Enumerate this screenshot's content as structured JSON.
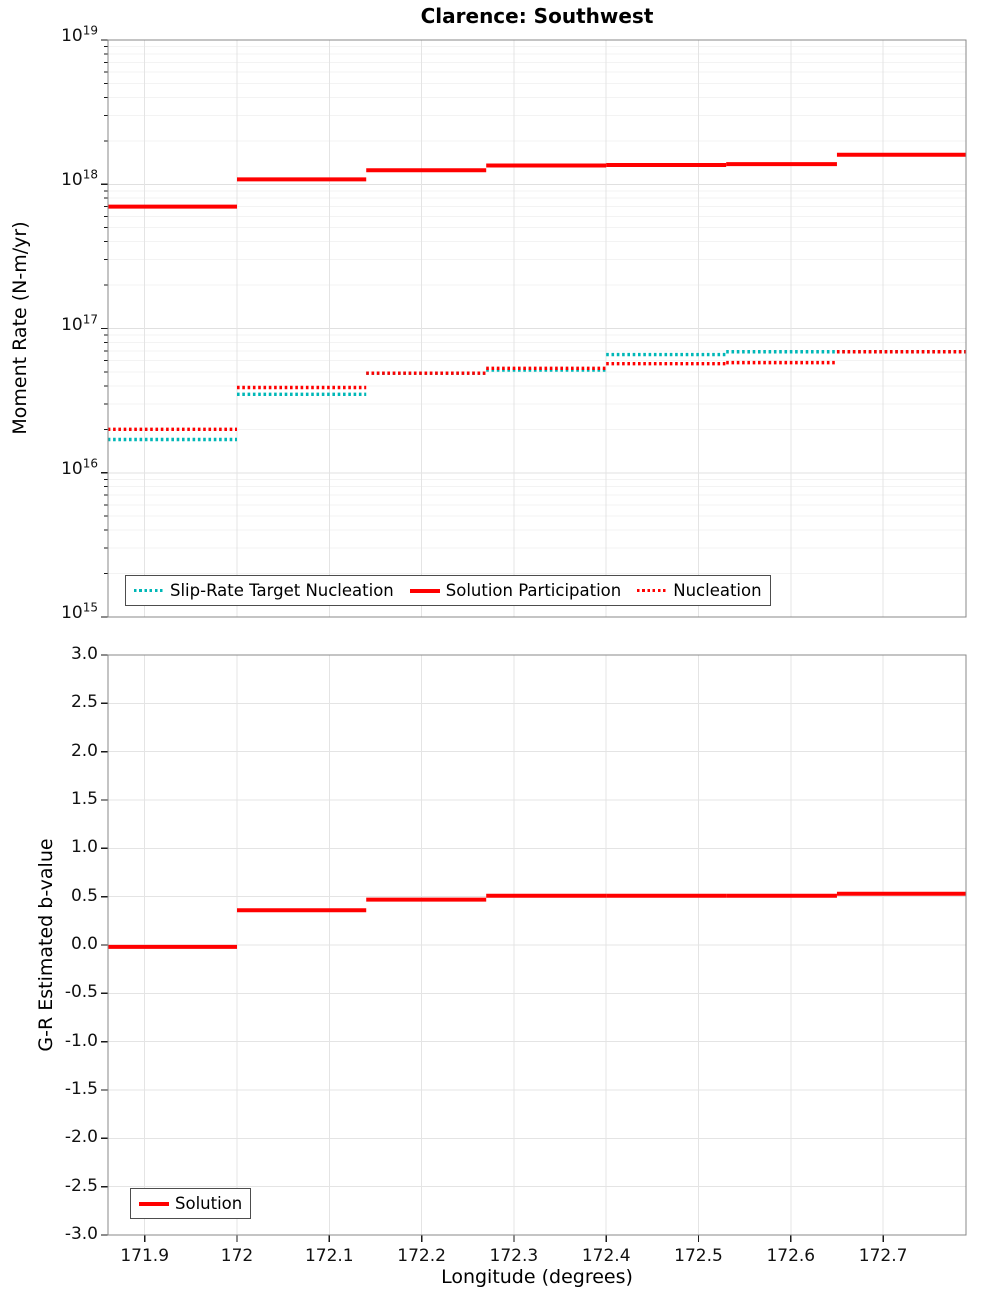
{
  "title": "Clarence: Southwest",
  "x_axis": {
    "label": "Longitude (degrees)",
    "tick_labels": [
      "171.9",
      "172",
      "172.1",
      "172.2",
      "172.3",
      "172.4",
      "172.5",
      "172.6",
      "172.7"
    ],
    "range": [
      171.86,
      172.79
    ]
  },
  "top_panel": {
    "y_label": "Moment Rate (N-m/yr)",
    "y_tick_base": "10",
    "y_tick_exponents": [
      19,
      18,
      17,
      16,
      15
    ],
    "legend": [
      {
        "label": "Slip-Rate Target Nucleation",
        "style": "dotted",
        "color": "#00b7b7"
      },
      {
        "label": "Solution Participation",
        "style": "solid",
        "color": "#ff0000"
      },
      {
        "label": "Nucleation",
        "style": "dotted",
        "color": "#ff0000"
      }
    ]
  },
  "bottom_panel": {
    "y_label": "G-R Estimated b-value",
    "y_tick_labels": [
      "3.0",
      "2.5",
      "2.0",
      "1.5",
      "1.0",
      "0.5",
      "0.0",
      "-0.5",
      "-1.0",
      "-1.5",
      "-2.0",
      "-2.5",
      "-3.0"
    ],
    "legend": [
      {
        "label": "Solution",
        "style": "solid",
        "color": "#ff0000"
      }
    ]
  },
  "colors": {
    "red": "#ff0000",
    "teal": "#00b7b7",
    "grid": "#e4e4e4",
    "grid_major": "#e0e0e0",
    "grid_minor": "#f3f3f3",
    "frame": "#898989",
    "tick": "#1a1a1a",
    "legend_border": "#4d4d4d",
    "background": "#ffffff"
  },
  "chart_data": [
    {
      "type": "line",
      "subtype": "step-segments",
      "title": "Clarence: Southwest",
      "xlabel": "Longitude (degrees)",
      "ylabel": "Moment Rate (N-m/yr)",
      "yscale": "log",
      "ylim": [
        1000000000000000.0,
        1e+19
      ],
      "xlim": [
        171.86,
        172.79
      ],
      "grid": true,
      "legend_position": "lower-left-inside",
      "segment_edges_longitude": [
        171.86,
        172.0,
        172.14,
        172.27,
        172.4,
        172.53,
        172.65,
        172.79
      ],
      "series": [
        {
          "name": "Slip-Rate Target Nucleation",
          "color": "#00b7b7",
          "line": "dotted",
          "values": [
            1.7e+16,
            3.5e+16,
            4.9e+16,
            5.15e+16,
            6.6e+16,
            6.9e+16,
            6.9e+16
          ]
        },
        {
          "name": "Solution Participation",
          "color": "#ff0000",
          "line": "solid",
          "values": [
            7e+17,
            1.08e+18,
            1.25e+18,
            1.35e+18,
            1.36e+18,
            1.38e+18,
            1.6e+18
          ]
        },
        {
          "name": "Nucleation",
          "color": "#ff0000",
          "line": "dotted",
          "values": [
            2e+16,
            3.9e+16,
            4.9e+16,
            5.3e+16,
            5.7e+16,
            5.8e+16,
            6.9e+16
          ]
        }
      ]
    },
    {
      "type": "line",
      "subtype": "step-segments",
      "xlabel": "Longitude (degrees)",
      "ylabel": "G-R Estimated b-value",
      "yscale": "linear",
      "ylim": [
        -3.0,
        3.0
      ],
      "xlim": [
        171.86,
        172.79
      ],
      "grid": true,
      "legend_position": "lower-left-inside",
      "segment_edges_longitude": [
        171.86,
        172.0,
        172.14,
        172.27,
        172.4,
        172.53,
        172.65,
        172.79
      ],
      "series": [
        {
          "name": "Solution",
          "color": "#ff0000",
          "line": "solid",
          "values": [
            -0.02,
            0.36,
            0.47,
            0.51,
            0.51,
            0.51,
            0.53
          ]
        }
      ]
    }
  ]
}
